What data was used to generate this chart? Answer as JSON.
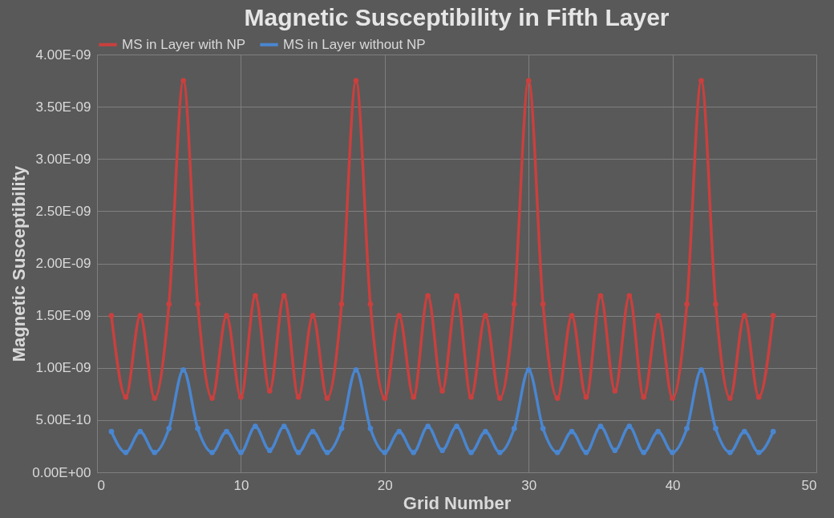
{
  "chart_data": {
    "type": "line",
    "title": "Magnetic Susceptibility in Fifth Layer",
    "xlabel": "Grid Number",
    "ylabel": "Magnetic Susceptibility",
    "x": [
      1,
      2,
      3,
      4,
      5,
      6,
      7,
      8,
      9,
      10,
      11,
      12,
      13,
      14,
      15,
      16,
      17,
      18,
      19,
      20,
      21,
      22,
      23,
      24,
      25,
      26,
      27,
      28,
      29,
      30,
      31,
      32,
      33,
      34,
      35,
      36,
      37,
      38,
      39,
      40,
      41,
      42,
      43,
      44,
      45,
      46,
      47
    ],
    "series": [
      {
        "name": "MS in Layer with NP",
        "color": "#c9403e",
        "values": [
          1.5e-09,
          7.2e-10,
          1.5e-09,
          7.1e-10,
          1.61e-09,
          3.75e-09,
          1.61e-09,
          7.1e-10,
          1.5e-09,
          7.2e-10,
          1.69e-09,
          7.8e-10,
          1.69e-09,
          7.2e-10,
          1.5e-09,
          7.1e-10,
          1.61e-09,
          3.75e-09,
          1.61e-09,
          7.1e-10,
          1.5e-09,
          7.2e-10,
          1.69e-09,
          7.8e-10,
          1.69e-09,
          7.2e-10,
          1.5e-09,
          7.1e-10,
          1.61e-09,
          3.75e-09,
          1.61e-09,
          7.1e-10,
          1.5e-09,
          7.2e-10,
          1.69e-09,
          7.8e-10,
          1.69e-09,
          7.2e-10,
          1.5e-09,
          7.1e-10,
          1.61e-09,
          3.75e-09,
          1.61e-09,
          7.1e-10,
          1.5e-09,
          7.2e-10,
          1.5e-09
        ]
      },
      {
        "name": "MS in Layer without NP",
        "color": "#4a86d0",
        "values": [
          3.9e-10,
          1.9e-10,
          3.9e-10,
          1.9e-10,
          4.2e-10,
          9.8e-10,
          4.2e-10,
          1.9e-10,
          3.9e-10,
          1.9e-10,
          4.4e-10,
          2.1e-10,
          4.4e-10,
          1.9e-10,
          3.9e-10,
          1.9e-10,
          4.2e-10,
          9.8e-10,
          4.2e-10,
          1.9e-10,
          3.9e-10,
          1.9e-10,
          4.4e-10,
          2.1e-10,
          4.4e-10,
          1.9e-10,
          3.9e-10,
          1.9e-10,
          4.2e-10,
          9.8e-10,
          4.2e-10,
          1.9e-10,
          3.9e-10,
          1.9e-10,
          4.4e-10,
          2.1e-10,
          4.4e-10,
          1.9e-10,
          3.9e-10,
          1.9e-10,
          4.2e-10,
          9.8e-10,
          4.2e-10,
          1.9e-10,
          3.9e-10,
          1.9e-10,
          3.9e-10
        ]
      }
    ],
    "xlim": [
      0,
      50
    ],
    "xticks": [
      0,
      10,
      20,
      30,
      40,
      50
    ],
    "ylim": [
      0,
      4e-09
    ],
    "yticks": [
      {
        "value": 0,
        "label": "0.00E+00"
      },
      {
        "value": 5e-10,
        "label": "5.00E-10"
      },
      {
        "value": 1e-09,
        "label": "1.00E-09"
      },
      {
        "value": 1.5e-09,
        "label": "1.50E-09"
      },
      {
        "value": 2e-09,
        "label": "2.00E-09"
      },
      {
        "value": 2.5e-09,
        "label": "2.50E-09"
      },
      {
        "value": 3e-09,
        "label": "3.00E-09"
      },
      {
        "value": 3.5e-09,
        "label": "3.50E-09"
      },
      {
        "value": 4e-09,
        "label": "4.00E-09"
      }
    ],
    "grid": true,
    "legend": "top",
    "marker": "circle",
    "line_style": "solid"
  }
}
